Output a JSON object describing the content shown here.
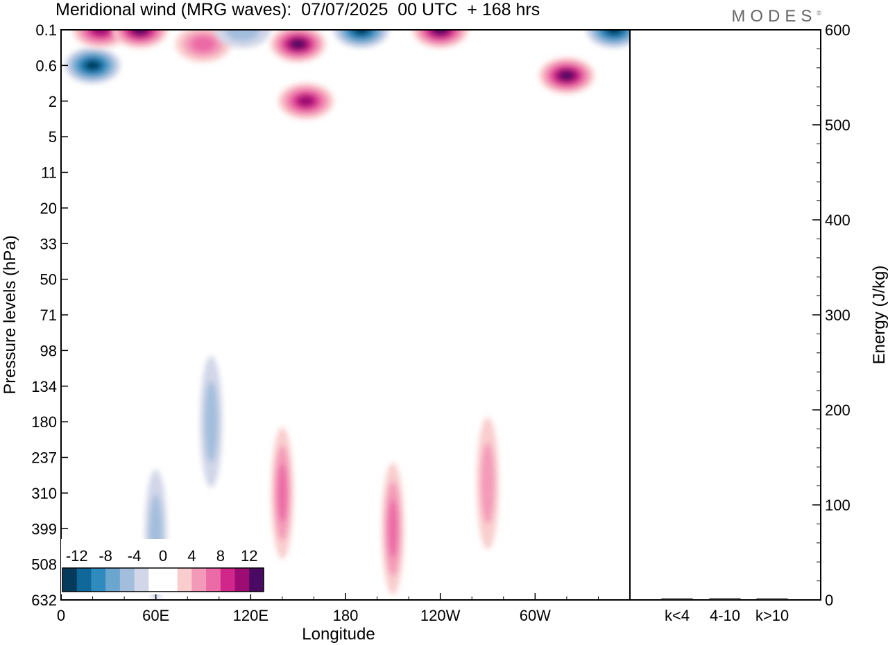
{
  "title": "Meridional wind (MRG waves):  07/07/2025  00 UTC  + 168 hrs",
  "brand": "MODES",
  "brand_mark": "©",
  "chart_data": [
    {
      "type": "heatmap",
      "title": "Meridional wind (MRG waves):  07/07/2025  00 UTC  + 168 hrs",
      "xlabel": "Longitude",
      "ylabel": "Pressure levels (hPa)",
      "x_ticks": [
        "0",
        "60E",
        "120E",
        "180",
        "120W",
        "60W"
      ],
      "x_tick_values": [
        0,
        60,
        120,
        180,
        240,
        300
      ],
      "xlim": [
        0,
        360
      ],
      "y_ticks": [
        "0.1",
        "0.6",
        "2",
        "5",
        "11",
        "20",
        "33",
        "50",
        "71",
        "98",
        "134",
        "180",
        "237",
        "310",
        "399",
        "508",
        "632"
      ],
      "y_scale": "model levels (pressure decreasing upward)",
      "colorbar": {
        "ticks": [
          "-12",
          "-8",
          "-4",
          "0",
          "4",
          "8",
          "12"
        ],
        "levels": [
          -14,
          -12,
          -10,
          -8,
          -6,
          -4,
          -2,
          0,
          2,
          4,
          6,
          8,
          10,
          12,
          14
        ],
        "colors": [
          "#063a5c",
          "#10679a",
          "#2f8bbd",
          "#6ba6cf",
          "#a3bedd",
          "#d1d6e8",
          "#ffffff",
          "#ffffff",
          "#f9cdcd",
          "#f49ab9",
          "#ec6aa6",
          "#d2278a",
          "#9c0c72",
          "#4a0a63"
        ],
        "legend_position": "bottom-left"
      },
      "features": [
        {
          "sign": "negative",
          "lon": 20,
          "level": "0.6",
          "magnitude": 14
        },
        {
          "sign": "positive",
          "lon": 25,
          "level": "0.1",
          "magnitude": 12
        },
        {
          "sign": "positive",
          "lon": 50,
          "level": "0.1",
          "magnitude": 14
        },
        {
          "sign": "positive",
          "lon": 90,
          "level": "0.3",
          "magnitude": 8
        },
        {
          "sign": "negative",
          "lon": 115,
          "level": "0.1",
          "magnitude": 6
        },
        {
          "sign": "positive",
          "lon": 150,
          "level": "0.3",
          "magnitude": 14
        },
        {
          "sign": "positive",
          "lon": 155,
          "level": "2",
          "magnitude": 12
        },
        {
          "sign": "negative",
          "lon": 190,
          "level": "0.1",
          "magnitude": 14
        },
        {
          "sign": "positive",
          "lon": 240,
          "level": "0.1",
          "magnitude": 14
        },
        {
          "sign": "positive",
          "lon": 320,
          "level": "1",
          "magnitude": 14
        },
        {
          "sign": "negative",
          "lon": 350,
          "level": "0.1",
          "magnitude": 14
        },
        {
          "sign": "negative",
          "lon": 95,
          "level": "180",
          "magnitude": 6
        },
        {
          "sign": "positive",
          "lon": 140,
          "level": "310",
          "magnitude": 8
        },
        {
          "sign": "positive",
          "lon": 210,
          "level": "399",
          "magnitude": 8
        },
        {
          "sign": "positive",
          "lon": 270,
          "level": "290",
          "magnitude": 6
        },
        {
          "sign": "negative",
          "lon": 60,
          "level": "420",
          "magnitude": 6
        }
      ]
    },
    {
      "type": "bar",
      "ylabel": "Energy (J/kg)",
      "ylim": [
        0,
        600
      ],
      "y_ticks": [
        "0",
        "100",
        "200",
        "300",
        "400",
        "500",
        "600"
      ],
      "categories": [
        "k<4",
        "4-10",
        "k>10"
      ],
      "values": [
        0.3,
        1.2,
        0.2
      ]
    }
  ]
}
